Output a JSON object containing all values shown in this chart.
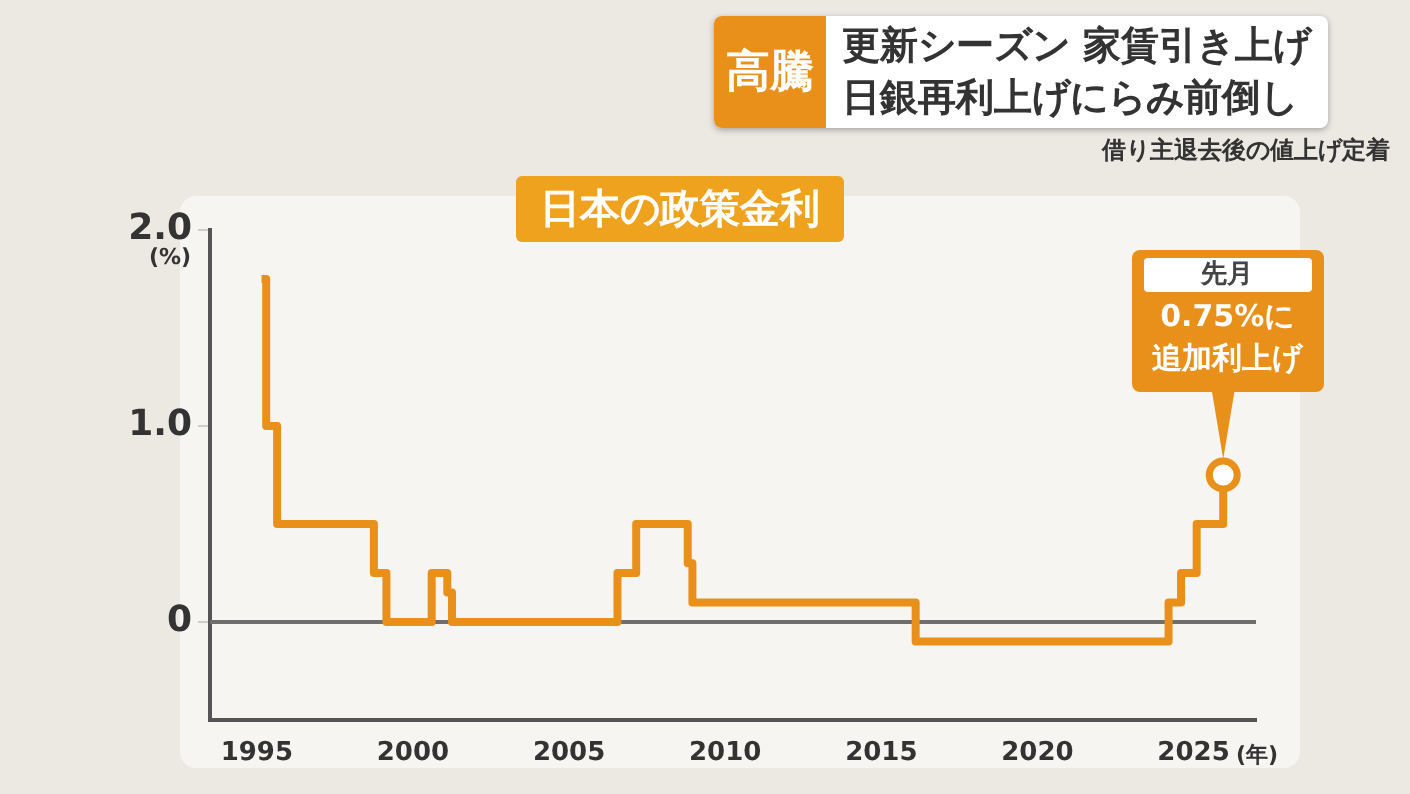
{
  "chart_data": {
    "type": "step",
    "title": "日本の政策金利",
    "xlabel": "(年)",
    "ylabel": "(%)",
    "annotations": [
      "高騰",
      "更新シーズン 家賃引き上げ",
      "日銀再利上げにらみ前倒し",
      "借り主退去後の値上げ定着",
      "先月",
      {
        "text": "0.75%に追加利上げ",
        "x": 2025.95,
        "y": 0.75
      }
    ],
    "x": [
      1995.15,
      1995.3,
      1995.65,
      1998.75,
      1999.15,
      2000.6,
      2001.1,
      2001.25,
      2006.55,
      2007.15,
      2008.8,
      2008.95,
      2016.1,
      2024.2,
      2024.6,
      2025.1,
      2025.95
    ],
    "series": [
      {
        "color": "#e8901a",
        "values": [
          1.75,
          1.0,
          0.5,
          0.25,
          0,
          0.25,
          0.15,
          0,
          0.25,
          0.5,
          0.3,
          0.1,
          -0.1,
          0.1,
          0.25,
          0.5,
          0.75
        ]
      }
    ],
    "xlim": [
      1993.5,
      2027
    ],
    "xticks": [
      1995,
      2000,
      2005,
      2010,
      2015,
      2020,
      2025
    ],
    "ylim": [
      -0.5,
      2.0
    ],
    "yticks": [
      {
        "value": 2,
        "label": "2.0"
      },
      {
        "value": 1,
        "label": "1.0"
      },
      0
    ],
    "ref_lines": [
      {
        "axis": "y",
        "value": 0,
        "color": "#6e6e6e"
      }
    ],
    "grid": false,
    "legend": false
  }
}
